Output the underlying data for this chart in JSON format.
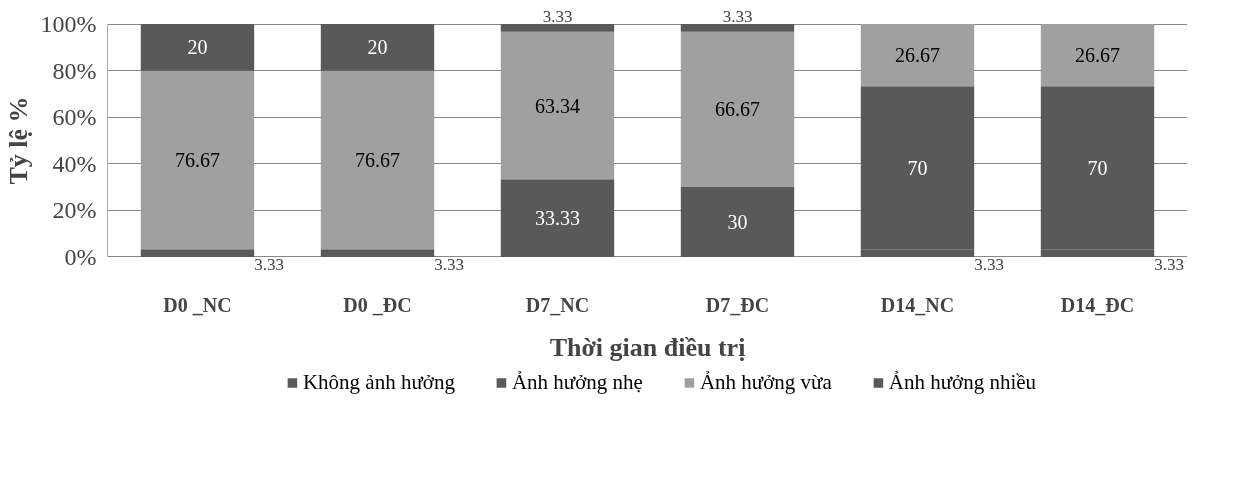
{
  "chart_data": {
    "type": "bar",
    "stacked": true,
    "xlabel": "Thời gian điều trị",
    "ylabel": "Tỷ lệ %",
    "categories": [
      "D0 _NC",
      "D0 _ĐC",
      "D7_NC",
      "D7_ĐC",
      "D14_NC",
      "D14_ĐC"
    ],
    "series": [
      {
        "name": "Không ảnh hưởng",
        "color": "#5a5a5a",
        "values": [
          3.33,
          3.33,
          0,
          0,
          3.33,
          3.33
        ],
        "value_labels": [
          "3.33",
          "3.33",
          null,
          null,
          "3.33",
          "3.33"
        ]
      },
      {
        "name": "Ảnh hưởng nhẹ",
        "color": "#595959",
        "values": [
          0,
          0,
          33.33,
          30,
          70,
          70
        ],
        "value_labels": [
          null,
          null,
          "33.33",
          "30",
          "70",
          "70"
        ]
      },
      {
        "name": "Ảnh hưởng vừa",
        "color": "#a0a0a0",
        "values": [
          76.67,
          76.67,
          63.34,
          66.67,
          26.67,
          26.67
        ],
        "value_labels": [
          "76.67",
          "76.67",
          "63.34",
          "66.67",
          "26.67",
          "26.67"
        ]
      },
      {
        "name": "Ảnh hưởng nhiều",
        "color": "#595959",
        "values": [
          20,
          20,
          3.33,
          3.33,
          0,
          0
        ],
        "value_labels": [
          "20",
          "20",
          "3.33",
          "3.33",
          null,
          null
        ]
      }
    ],
    "ylim": [
      0,
      100
    ],
    "yticks": [
      {
        "value": 0,
        "label": "0%"
      },
      {
        "value": 20,
        "label": "20%"
      },
      {
        "value": 40,
        "label": "40%"
      },
      {
        "value": 60,
        "label": "60%"
      },
      {
        "value": 80,
        "label": "80%"
      },
      {
        "value": 100,
        "label": "100%"
      }
    ],
    "grid": "y",
    "legend": "bottom"
  }
}
